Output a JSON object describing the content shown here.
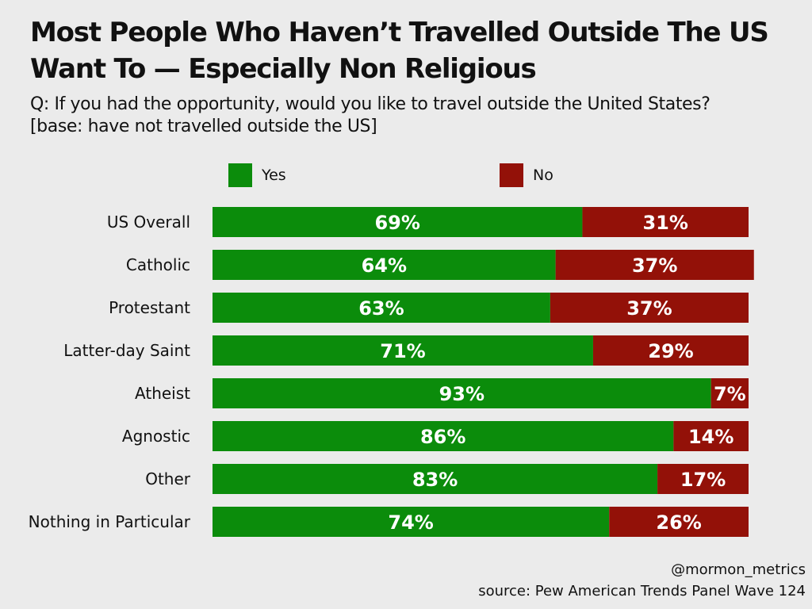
{
  "title_line1": "Most People Who Haven’t Travelled Outside The US",
  "title_line2": "Want To — Especially Non Religious",
  "subtitle_line1": "Q: If you had the opportunity, would you like to travel outside the United States?",
  "subtitle_line2": "[base: have not travelled outside the US]",
  "colors": {
    "yes": "#0b8c0b",
    "no": "#931108",
    "background": "#ebebeb"
  },
  "chart_data": {
    "type": "bar",
    "orientation": "horizontal",
    "stacked": true,
    "categories": [
      "US Overall",
      "Catholic",
      "Protestant",
      "Latter-day Saint",
      "Atheist",
      "Agnostic",
      "Other",
      "Nothing in Particular"
    ],
    "series": [
      {
        "name": "Yes",
        "values": [
          69,
          64,
          63,
          71,
          93,
          86,
          83,
          74
        ]
      },
      {
        "name": "No",
        "values": [
          31,
          37,
          37,
          29,
          7,
          14,
          17,
          26
        ]
      }
    ],
    "value_suffix": "%",
    "xlim": [
      0,
      100
    ],
    "legend_position": "top",
    "grid": false
  },
  "footer": {
    "handle": "@mormon_metrics",
    "source": "source: Pew American Trends Panel Wave 124"
  }
}
